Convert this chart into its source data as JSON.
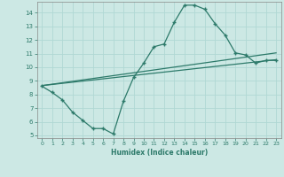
{
  "title": "",
  "xlabel": "Humidex (Indice chaleur)",
  "ylabel": "",
  "xlim": [
    -0.5,
    23.5
  ],
  "ylim": [
    4.8,
    14.8
  ],
  "yticks": [
    5,
    6,
    7,
    8,
    9,
    10,
    11,
    12,
    13,
    14
  ],
  "xticks": [
    0,
    1,
    2,
    3,
    4,
    5,
    6,
    7,
    8,
    9,
    10,
    11,
    12,
    13,
    14,
    15,
    16,
    17,
    18,
    19,
    20,
    21,
    22,
    23
  ],
  "bg_color": "#cce8e4",
  "grid_color": "#b0d8d4",
  "line_color": "#2d7a6a",
  "curve1_x": [
    0,
    1,
    2,
    3,
    4,
    5,
    6,
    7,
    8,
    9,
    10,
    11,
    12,
    13,
    14,
    15,
    16,
    17,
    18,
    19,
    20,
    21,
    22,
    23
  ],
  "curve1_y": [
    8.6,
    8.15,
    7.6,
    6.7,
    6.1,
    5.5,
    5.5,
    5.1,
    7.5,
    9.25,
    10.3,
    11.5,
    11.7,
    13.3,
    14.55,
    14.55,
    14.25,
    13.2,
    12.35,
    11.05,
    10.9,
    10.3,
    10.5,
    10.5
  ],
  "curve2_x": [
    0,
    23
  ],
  "curve2_y": [
    8.65,
    10.55
  ],
  "curve3_x": [
    0,
    23
  ],
  "curve3_y": [
    8.65,
    11.05
  ]
}
